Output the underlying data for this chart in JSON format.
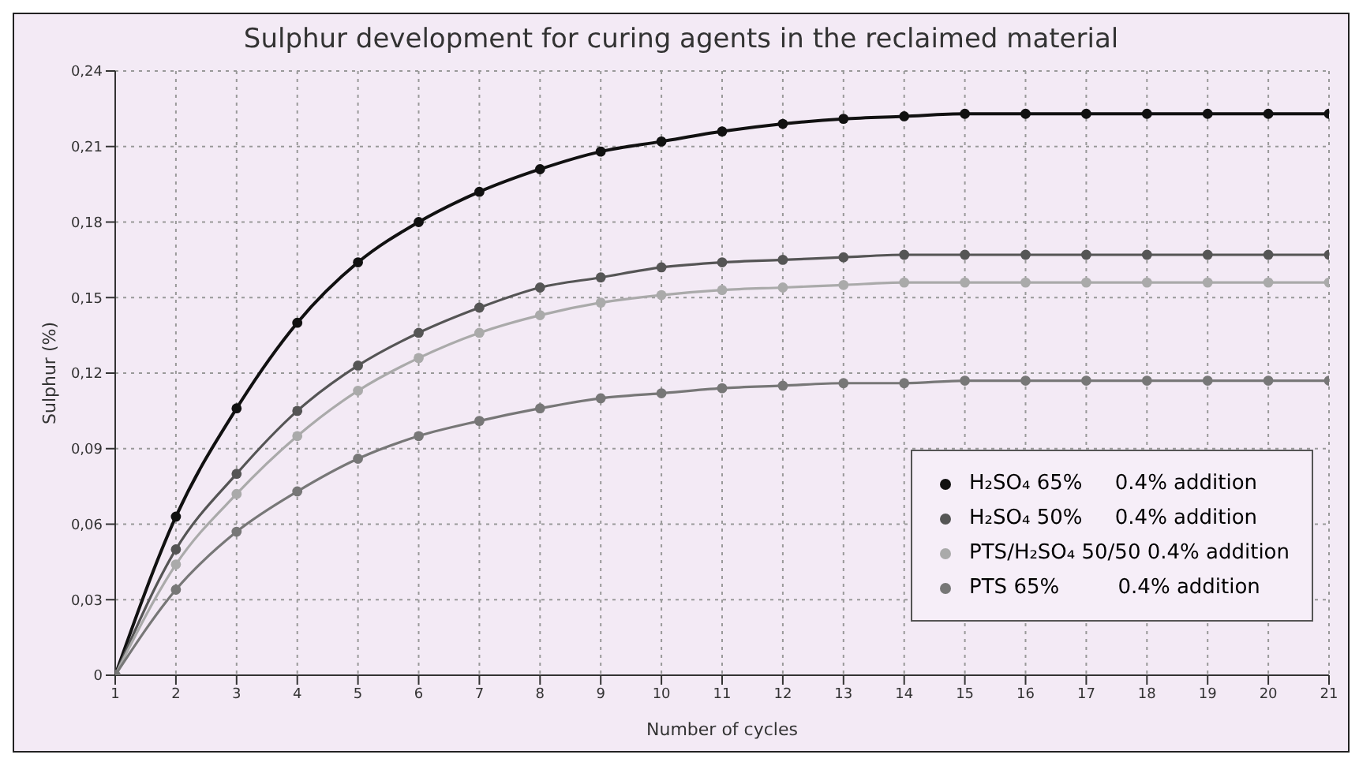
{
  "chart_data": {
    "type": "line",
    "title": "Sulphur development for curing agents in the reclaimed material",
    "xlabel": "Number of cycles",
    "ylabel": "Sulphur (%)",
    "x": [
      1,
      2,
      3,
      4,
      5,
      6,
      7,
      8,
      9,
      10,
      11,
      12,
      13,
      14,
      15,
      16,
      17,
      18,
      19,
      20,
      21
    ],
    "series": [
      {
        "name": "H₂SO₄ 65%     0.4% addition",
        "color": "#111111",
        "values": [
          0,
          0.063,
          0.106,
          0.14,
          0.164,
          0.18,
          0.192,
          0.201,
          0.208,
          0.212,
          0.216,
          0.219,
          0.221,
          0.222,
          0.223,
          0.223,
          0.223,
          0.223,
          0.223,
          0.223,
          0.223
        ]
      },
      {
        "name": "H₂SO₄ 50%     0.4% addition",
        "color": "#555555",
        "values": [
          0,
          0.05,
          0.08,
          0.105,
          0.123,
          0.136,
          0.146,
          0.154,
          0.158,
          0.162,
          0.164,
          0.165,
          0.166,
          0.167,
          0.167,
          0.167,
          0.167,
          0.167,
          0.167,
          0.167,
          0.167
        ]
      },
      {
        "name": "PTS/H₂SO₄ 50/50 0.4% addition",
        "color": "#aaaaaa",
        "values": [
          0,
          0.044,
          0.072,
          0.095,
          0.113,
          0.126,
          0.136,
          0.143,
          0.148,
          0.151,
          0.153,
          0.154,
          0.155,
          0.156,
          0.156,
          0.156,
          0.156,
          0.156,
          0.156,
          0.156,
          0.156
        ]
      },
      {
        "name": "PTS 65%         0.4% addition",
        "color": "#777777",
        "values": [
          0,
          0.034,
          0.057,
          0.073,
          0.086,
          0.095,
          0.101,
          0.106,
          0.11,
          0.112,
          0.114,
          0.115,
          0.116,
          0.116,
          0.117,
          0.117,
          0.117,
          0.117,
          0.117,
          0.117,
          0.117
        ]
      }
    ],
    "xlim": [
      1,
      21
    ],
    "xticks": [
      1,
      2,
      3,
      4,
      5,
      6,
      7,
      8,
      9,
      10,
      11,
      12,
      13,
      14,
      15,
      16,
      17,
      18,
      19,
      20,
      21
    ],
    "ylim": [
      0,
      0.24
    ],
    "yticks": [
      0,
      {
        "value": 0.03,
        "label": "0,03"
      },
      {
        "value": 0.06,
        "label": "0,06"
      },
      {
        "value": 0.09,
        "label": "0,09"
      },
      {
        "value": 0.12,
        "label": "0,12"
      },
      {
        "value": 0.15,
        "label": "0,15"
      },
      {
        "value": 0.18,
        "label": "0,18"
      },
      {
        "value": 0.21,
        "label": "0,21"
      },
      {
        "value": 0.24,
        "label": "0,24"
      }
    ],
    "grid": true,
    "legend": "bottom right",
    "marker": "circle",
    "line_style": "solid"
  }
}
